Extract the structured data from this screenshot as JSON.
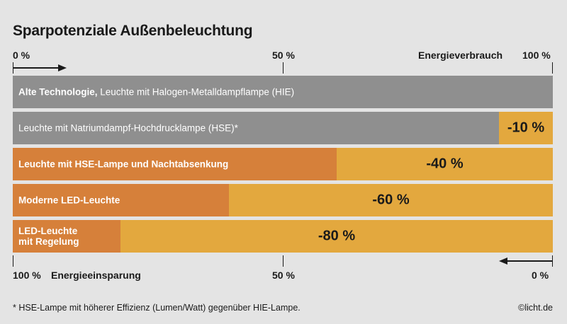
{
  "title": "Sparpotenziale Außenbeleuchtung",
  "top_axis": {
    "start": "0 %",
    "mid": "50 %",
    "end": "100 %",
    "label": "Energieverbrauch"
  },
  "bottom_axis": {
    "start": "100 %",
    "label": "Energieeinsparung",
    "mid": "50 %",
    "end": "0 %"
  },
  "colors": {
    "grey": "#8f8f8f",
    "dark_orange": "#d6803a",
    "light_orange": "#e3a83e",
    "background": "#e4e4e4"
  },
  "chart_data": {
    "type": "bar",
    "orientation": "horizontal",
    "title": "Sparpotenziale Außenbeleuchtung",
    "xlim": [
      0,
      100
    ],
    "unit": "%",
    "categories": [
      "Alte Technologie, Leuchte mit Halogen-Metalldampflampe (HIE)",
      "Leuchte mit Natriumdampf-Hochdrucklampe (HSE)*",
      "Leuchte mit HSE-Lampe und Nachtabsenkung",
      "Moderne LED-Leuchte",
      "LED-Leuchte mit Regelung"
    ],
    "series": [
      {
        "name": "Energieverbrauch",
        "values": [
          100,
          90,
          60,
          40,
          20
        ]
      },
      {
        "name": "Energieeinsparung",
        "values": [
          0,
          10,
          40,
          60,
          80
        ]
      }
    ]
  },
  "bars": [
    {
      "label_bold": "Alte Technologie,",
      "label_rest": " Leuchte mit Halogen-Metalldampflampe (HIE)",
      "saving_text": ""
    },
    {
      "label_bold": "",
      "label_rest": "Leuchte mit Natriumdampf-Hochdrucklampe (HSE)*",
      "saving_text": "-10 %"
    },
    {
      "label_bold": "Leuchte mit HSE-Lampe und Nachtabsenkung",
      "label_rest": "",
      "saving_text": "-40 %"
    },
    {
      "label_bold": "Moderne LED-Leuchte",
      "label_rest": "",
      "saving_text": "-60 %"
    },
    {
      "label_bold": "LED-Leuchte\nmit Regelung",
      "label_rest": "",
      "saving_text": "-80 %"
    }
  ],
  "footnote": "* HSE-Lampe mit höherer Effizienz (Lumen/Watt) gegenüber HIE-Lampe.",
  "copyright": "©licht.de"
}
